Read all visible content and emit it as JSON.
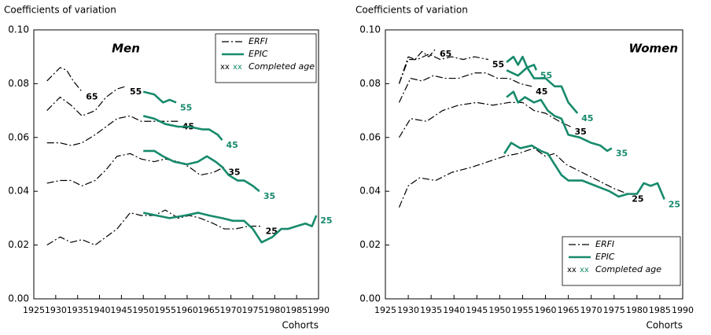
{
  "chart_data": [
    {
      "type": "line",
      "title": "Men",
      "ylabel": "Coefficients of variation",
      "xlabel": "Cohorts",
      "xlim": [
        1925,
        1990
      ],
      "xticks": [
        1925,
        1930,
        1935,
        1940,
        1945,
        1950,
        1955,
        1960,
        1965,
        1970,
        1975,
        1980,
        1985,
        1990
      ],
      "ylim": [
        0,
        0.1
      ],
      "yticks": [
        {
          "value": 0,
          "label": "0.00"
        },
        {
          "value": 0.02,
          "label": "0.02"
        },
        {
          "value": 0.04,
          "label": "0.04"
        },
        {
          "value": 0.06,
          "label": "0.06"
        },
        {
          "value": 0.08,
          "label": "0.08"
        },
        {
          "value": 0.1,
          "label": "0.10"
        }
      ],
      "legend": "upper right",
      "legend_note": {
        "markers": [
          "xx",
          "xx"
        ],
        "text": "Completed age"
      },
      "series": [
        {
          "name": "ERFI",
          "label": "65",
          "color": "#000000",
          "dashed": true,
          "x": [
            1928,
            1931,
            1932.5,
            1934,
            1936
          ],
          "values": [
            0.081,
            0.086,
            0.085,
            0.081,
            0.077
          ]
        },
        {
          "name": "ERFI",
          "label": "55",
          "color": "#000000",
          "dashed": true,
          "x": [
            1928,
            1931,
            1933.5,
            1936,
            1939,
            1941.5,
            1944,
            1946
          ],
          "values": [
            0.07,
            0.075,
            0.072,
            0.068,
            0.07,
            0.075,
            0.078,
            0.079
          ]
        },
        {
          "name": "ERFI",
          "label": "45",
          "color": "#000000",
          "dashed": true,
          "x": [
            1928,
            1931,
            1933.5,
            1936,
            1939,
            1941.5,
            1944,
            1947,
            1949.5,
            1952.5,
            1955,
            1958
          ],
          "values": [
            0.058,
            0.058,
            0.057,
            0.058,
            0.061,
            0.064,
            0.067,
            0.068,
            0.066,
            0.066,
            0.066,
            0.066
          ]
        },
        {
          "name": "ERFI",
          "label": "35",
          "color": "#000000",
          "dashed": true,
          "x": [
            1928,
            1931,
            1933.5,
            1936,
            1939,
            1941.5,
            1944,
            1947,
            1949.5,
            1952.5,
            1955,
            1958,
            1960.5,
            1963,
            1966,
            1968.5
          ],
          "values": [
            0.043,
            0.044,
            0.044,
            0.042,
            0.044,
            0.048,
            0.053,
            0.054,
            0.052,
            0.051,
            0.052,
            0.051,
            0.049,
            0.046,
            0.047,
            0.049
          ]
        },
        {
          "name": "ERFI",
          "label": "25",
          "color": "#000000",
          "dashed": true,
          "x": [
            1928,
            1931,
            1933.5,
            1936,
            1939,
            1941.5,
            1944,
            1947,
            1949.5,
            1952.5,
            1955,
            1958,
            1960.5,
            1963,
            1966,
            1968.5,
            1971,
            1974,
            1977
          ],
          "values": [
            0.02,
            0.023,
            0.021,
            0.022,
            0.02,
            0.023,
            0.026,
            0.032,
            0.031,
            0.031,
            0.033,
            0.03,
            0.031,
            0.03,
            0.028,
            0.026,
            0.026,
            0.027,
            0.027
          ]
        },
        {
          "name": "EPIC",
          "label": "55",
          "color": "#178a6c",
          "dashed": false,
          "x": [
            1950,
            1952.5,
            1954.5,
            1956,
            1957.5
          ],
          "values": [
            0.077,
            0.076,
            0.073,
            0.074,
            0.073
          ]
        },
        {
          "name": "EPIC",
          "label": "45",
          "color": "#178a6c",
          "dashed": false,
          "x": [
            1950,
            1952.5,
            1955,
            1958,
            1960.5,
            1963.5,
            1965,
            1967,
            1968
          ],
          "values": [
            0.068,
            0.067,
            0.065,
            0.064,
            0.064,
            0.063,
            0.063,
            0.061,
            0.059
          ]
        },
        {
          "name": "EPIC",
          "label": "35",
          "color": "#178a6c",
          "dashed": false,
          "x": [
            1950,
            1952.5,
            1954.5,
            1957,
            1960,
            1962.5,
            1964.5,
            1966.5,
            1968,
            1969.5,
            1971.5,
            1973,
            1975,
            1976.5
          ],
          "values": [
            0.055,
            0.055,
            0.053,
            0.051,
            0.05,
            0.051,
            0.053,
            0.051,
            0.049,
            0.046,
            0.044,
            0.044,
            0.042,
            0.04
          ]
        },
        {
          "name": "EPIC",
          "label": "25",
          "color": "#178a6c",
          "dashed": false,
          "x": [
            1950,
            1953,
            1956,
            1959.5,
            1962.5,
            1965,
            1968,
            1970.5,
            1973,
            1975,
            1977,
            1979.5,
            1981.5,
            1983,
            1985,
            1987,
            1988.5,
            1989.5
          ],
          "values": [
            0.032,
            0.031,
            0.03,
            0.031,
            0.032,
            0.031,
            0.03,
            0.029,
            0.029,
            0.026,
            0.021,
            0.023,
            0.026,
            0.026,
            0.027,
            0.028,
            0.027,
            0.031
          ]
        }
      ]
    },
    {
      "type": "line",
      "title": "Women",
      "ylabel": "Coefficients of variation",
      "xlabel": "Cohorts",
      "xlim": [
        1925,
        1990
      ],
      "xticks": [
        1925,
        1930,
        1935,
        1940,
        1945,
        1950,
        1955,
        1960,
        1965,
        1970,
        1975,
        1980,
        1985,
        1990
      ],
      "ylim": [
        0,
        0.1
      ],
      "yticks": [
        {
          "value": 0,
          "label": "0.00"
        },
        {
          "value": 0.02,
          "label": "0.02"
        },
        {
          "value": 0.04,
          "label": "0.04"
        },
        {
          "value": 0.06,
          "label": "0.06"
        },
        {
          "value": 0.08,
          "label": "0.08"
        },
        {
          "value": 0.1,
          "label": "0.10"
        }
      ],
      "legend": "lower right",
      "legend_note": {
        "markers": [
          "xx",
          "xx"
        ],
        "text": "Completed age"
      },
      "series": [
        {
          "name": "ERFI",
          "label": "65",
          "color": "#000000",
          "dashed": true,
          "x": [
            1928,
            1930,
            1931.5,
            1933,
            1934.5,
            1936
          ],
          "values": [
            0.08,
            0.09,
            0.089,
            0.092,
            0.09,
            0.093
          ]
        },
        {
          "name": "ERFI",
          "label": "55",
          "color": "#000000",
          "dashed": true,
          "x": [
            1928,
            1930,
            1932,
            1934.5,
            1937,
            1939.5,
            1942,
            1944.5,
            1947.5
          ],
          "values": [
            0.08,
            0.089,
            0.089,
            0.091,
            0.089,
            0.09,
            0.089,
            0.09,
            0.089
          ]
        },
        {
          "name": "ERFI",
          "label": "45",
          "color": "#000000",
          "dashed": true,
          "x": [
            1928,
            1930.5,
            1933,
            1935.5,
            1938,
            1941,
            1944.5,
            1947,
            1949.5,
            1952,
            1954.5,
            1957
          ],
          "values": [
            0.073,
            0.082,
            0.081,
            0.083,
            0.082,
            0.082,
            0.084,
            0.084,
            0.082,
            0.082,
            0.08,
            0.079
          ]
        },
        {
          "name": "ERFI",
          "label": "35",
          "color": "#000000",
          "dashed": true,
          "x": [
            1928,
            1930.5,
            1934,
            1937.5,
            1941,
            1945,
            1948.5,
            1952,
            1955,
            1957.5,
            1960,
            1963,
            1965.5
          ],
          "values": [
            0.06,
            0.067,
            0.066,
            0.07,
            0.072,
            0.073,
            0.072,
            0.073,
            0.073,
            0.07,
            0.069,
            0.066,
            0.064
          ]
        },
        {
          "name": "ERFI",
          "label": "25",
          "color": "#000000",
          "dashed": true,
          "x": [
            1928,
            1930,
            1932.5,
            1936,
            1939.5,
            1944,
            1947.5,
            1951,
            1954,
            1957.5,
            1960,
            1962,
            1964.5,
            1968,
            1971.5,
            1975,
            1978
          ],
          "values": [
            0.034,
            0.042,
            0.045,
            0.044,
            0.047,
            0.049,
            0.051,
            0.053,
            0.054,
            0.056,
            0.053,
            0.054,
            0.05,
            0.047,
            0.044,
            0.041,
            0.039
          ]
        },
        {
          "name": "EPIC",
          "label": "55",
          "color": "#178a6c",
          "dashed": false,
          "x": [
            1951.5,
            1953,
            1954,
            1955,
            1956,
            1957.5,
            1958
          ],
          "values": [
            0.088,
            0.09,
            0.087,
            0.09,
            0.086,
            0.087,
            0.085
          ]
        },
        {
          "name": "EPIC",
          "label": "45",
          "color": "#178a6c",
          "dashed": false,
          "x": [
            1951.5,
            1954,
            1956,
            1957.5,
            1960,
            1962,
            1963.5,
            1965,
            1967
          ],
          "values": [
            0.085,
            0.083,
            0.086,
            0.082,
            0.082,
            0.079,
            0.079,
            0.073,
            0.069
          ]
        },
        {
          "name": "EPIC",
          "label": "35",
          "color": "#178a6c",
          "dashed": false,
          "x": [
            1951.5,
            1953,
            1954,
            1955.5,
            1957.5,
            1959,
            1960.5,
            1962,
            1963.5,
            1965,
            1967.5,
            1970,
            1972,
            1973.5,
            1974.5
          ],
          "values": [
            0.075,
            0.077,
            0.073,
            0.075,
            0.073,
            0.074,
            0.07,
            0.068,
            0.067,
            0.061,
            0.06,
            0.058,
            0.057,
            0.055,
            0.056
          ]
        },
        {
          "name": "EPIC",
          "label": "25",
          "color": "#178a6c",
          "dashed": false,
          "x": [
            1951,
            1952.5,
            1954.5,
            1957,
            1959,
            1960.5,
            1962,
            1963.5,
            1965,
            1968,
            1971,
            1974,
            1976,
            1978,
            1980,
            1981.5,
            1983,
            1984.5,
            1986
          ],
          "values": [
            0.054,
            0.058,
            0.056,
            0.057,
            0.055,
            0.054,
            0.05,
            0.046,
            0.044,
            0.044,
            0.042,
            0.04,
            0.038,
            0.039,
            0.039,
            0.043,
            0.042,
            0.043,
            0.037
          ]
        }
      ]
    }
  ]
}
